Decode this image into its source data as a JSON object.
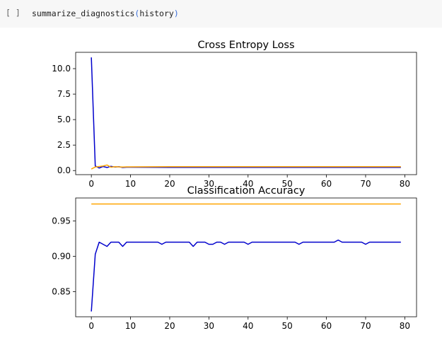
{
  "cell": {
    "prompt": "[ ]",
    "function_name": "summarize_diagnostics",
    "open_paren": "(",
    "argument": "history",
    "close_paren": ")"
  },
  "colors": {
    "train": "#0000cc",
    "validation": "#ffa500",
    "code_bg": "#f7f7f7",
    "paren": "#3b6fd9"
  },
  "chart_data": [
    {
      "type": "line",
      "title": "Cross Entropy Loss",
      "xlabel": "",
      "ylabel": "",
      "xlim": [
        -4,
        83
      ],
      "ylim": [
        -0.4,
        11.6
      ],
      "xticks": [
        0,
        10,
        20,
        30,
        40,
        50,
        60,
        70,
        80
      ],
      "yticks": [
        0.0,
        2.5,
        5.0,
        7.5,
        10.0
      ],
      "ytick_labels": [
        "0.0",
        "2.5",
        "5.0",
        "7.5",
        "10.0"
      ],
      "grid": false,
      "series": [
        {
          "color": "#0000cc",
          "x": [
            0,
            1,
            2,
            3,
            4,
            5,
            6,
            7,
            8,
            9,
            10,
            20,
            30,
            40,
            50,
            60,
            70,
            79
          ],
          "y": [
            11.1,
            0.45,
            0.25,
            0.4,
            0.3,
            0.42,
            0.35,
            0.38,
            0.3,
            0.33,
            0.33,
            0.31,
            0.31,
            0.31,
            0.31,
            0.31,
            0.31,
            0.31
          ]
        },
        {
          "color": "#ffa500",
          "x": [
            0,
            1,
            2,
            3,
            4,
            5,
            6,
            7,
            8,
            9,
            10,
            20,
            30,
            40,
            50,
            60,
            70,
            79
          ],
          "y": [
            0.15,
            0.35,
            0.4,
            0.45,
            0.55,
            0.33,
            0.38,
            0.36,
            0.35,
            0.36,
            0.36,
            0.38,
            0.38,
            0.38,
            0.38,
            0.38,
            0.38,
            0.38
          ]
        }
      ]
    },
    {
      "type": "line",
      "title": "Classification Accuracy",
      "xlabel": "",
      "ylabel": "",
      "xlim": [
        -4,
        83
      ],
      "ylim": [
        0.8145,
        0.9825
      ],
      "xticks": [
        0,
        10,
        20,
        30,
        40,
        50,
        60,
        70,
        80
      ],
      "yticks": [
        0.85,
        0.9,
        0.95
      ],
      "ytick_labels": [
        "0.85",
        "0.90",
        "0.95"
      ],
      "grid": false,
      "series": [
        {
          "color": "#0000cc",
          "x": [
            0,
            1,
            2,
            3,
            4,
            5,
            6,
            7,
            8,
            9,
            10,
            11,
            12,
            13,
            14,
            15,
            16,
            17,
            18,
            19,
            20,
            21,
            22,
            23,
            24,
            25,
            26,
            27,
            28,
            29,
            30,
            31,
            32,
            33,
            34,
            35,
            36,
            37,
            38,
            39,
            40,
            41,
            42,
            43,
            44,
            45,
            46,
            47,
            48,
            49,
            50,
            51,
            52,
            53,
            54,
            55,
            56,
            57,
            58,
            59,
            60,
            61,
            62,
            63,
            64,
            65,
            66,
            67,
            68,
            69,
            70,
            71,
            72,
            73,
            74,
            75,
            76,
            77,
            78,
            79
          ],
          "y": [
            0.822,
            0.903,
            0.92,
            0.917,
            0.914,
            0.92,
            0.92,
            0.92,
            0.914,
            0.92,
            0.92,
            0.92,
            0.92,
            0.92,
            0.92,
            0.92,
            0.92,
            0.92,
            0.917,
            0.92,
            0.92,
            0.92,
            0.92,
            0.92,
            0.92,
            0.92,
            0.914,
            0.92,
            0.92,
            0.92,
            0.917,
            0.917,
            0.92,
            0.92,
            0.917,
            0.92,
            0.92,
            0.92,
            0.92,
            0.92,
            0.917,
            0.92,
            0.92,
            0.92,
            0.92,
            0.92,
            0.92,
            0.92,
            0.92,
            0.92,
            0.92,
            0.92,
            0.92,
            0.917,
            0.92,
            0.92,
            0.92,
            0.92,
            0.92,
            0.92,
            0.92,
            0.92,
            0.92,
            0.923,
            0.92,
            0.92,
            0.92,
            0.92,
            0.92,
            0.92,
            0.917,
            0.92,
            0.92,
            0.92,
            0.92,
            0.92,
            0.92,
            0.92,
            0.92,
            0.92
          ]
        },
        {
          "color": "#ffa500",
          "x": [
            0,
            79
          ],
          "y": [
            0.974,
            0.974
          ]
        }
      ]
    }
  ]
}
